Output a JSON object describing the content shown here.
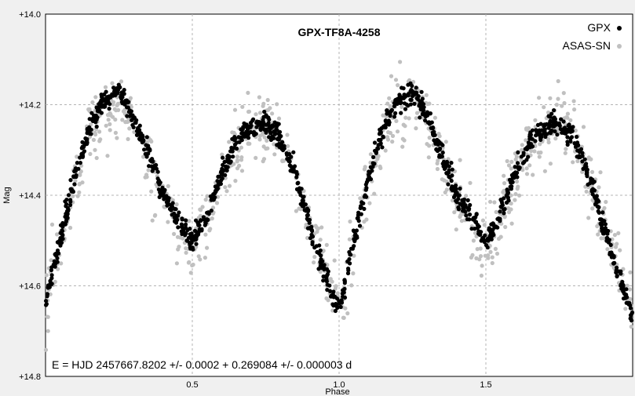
{
  "chart_data": {
    "type": "scatter",
    "title": "GPX-TF8A-4258",
    "xlabel": "Phase",
    "ylabel": "Mag",
    "xlim": [
      0.0,
      2.0
    ],
    "ylim": [
      14.8,
      14.0
    ],
    "y_inverted": true,
    "x_ticks": [
      "0.5",
      "1.0",
      "1.5"
    ],
    "x_tick_values": [
      0.5,
      1.0,
      1.5
    ],
    "y_ticks": [
      "+14.0",
      "+14.2",
      "+14.4",
      "+14.6",
      "+14.8"
    ],
    "y_tick_values": [
      14.0,
      14.2,
      14.4,
      14.6,
      14.8
    ],
    "grid": true,
    "legend_position": "top-right",
    "annotation": "E = HJD 2457667.8202 +/- 0.0002 + 0.269084 +/- 0.000003 d",
    "series": [
      {
        "name": "GPX",
        "color": "#000000",
        "x": [
          0.0,
          0.05,
          0.1,
          0.15,
          0.2,
          0.25,
          0.3,
          0.35,
          0.4,
          0.45,
          0.5,
          0.55,
          0.6,
          0.65,
          0.7,
          0.75,
          0.8,
          0.85,
          0.9,
          0.95,
          1.0,
          1.05,
          1.1,
          1.15,
          1.2,
          1.25,
          1.3,
          1.35,
          1.4,
          1.45,
          1.5,
          1.55,
          1.6,
          1.65,
          1.7,
          1.75,
          1.8,
          1.85,
          1.9,
          1.95,
          2.0
        ],
        "y": [
          14.64,
          14.5,
          14.36,
          14.25,
          14.19,
          14.17,
          14.23,
          14.31,
          14.4,
          14.45,
          14.5,
          14.44,
          14.35,
          14.28,
          14.25,
          14.24,
          14.27,
          14.35,
          14.47,
          14.57,
          14.66,
          14.5,
          14.36,
          14.25,
          14.19,
          14.17,
          14.23,
          14.31,
          14.4,
          14.45,
          14.5,
          14.44,
          14.35,
          14.28,
          14.25,
          14.24,
          14.27,
          14.35,
          14.47,
          14.57,
          14.66
        ]
      },
      {
        "name": "ASAS-SN",
        "color": "#c0c0c0",
        "x": [
          0.0,
          0.05,
          0.1,
          0.15,
          0.2,
          0.25,
          0.3,
          0.35,
          0.4,
          0.45,
          0.5,
          0.55,
          0.6,
          0.65,
          0.7,
          0.75,
          0.8,
          0.85,
          0.9,
          0.95,
          1.0,
          1.05,
          1.1,
          1.15,
          1.2,
          1.25,
          1.3,
          1.35,
          1.4,
          1.45,
          1.5,
          1.55,
          1.6,
          1.65,
          1.7,
          1.75,
          1.8,
          1.85,
          1.9,
          1.95,
          2.0
        ],
        "y": [
          14.65,
          14.51,
          14.37,
          14.27,
          14.21,
          14.19,
          14.24,
          14.32,
          14.41,
          14.46,
          14.52,
          14.45,
          14.36,
          14.29,
          14.25,
          14.24,
          14.27,
          14.35,
          14.46,
          14.56,
          14.66,
          14.51,
          14.37,
          14.27,
          14.21,
          14.19,
          14.24,
          14.32,
          14.41,
          14.46,
          14.52,
          14.45,
          14.36,
          14.29,
          14.25,
          14.24,
          14.27,
          14.35,
          14.46,
          14.56,
          14.66
        ],
        "scatter": 0.035
      }
    ]
  }
}
